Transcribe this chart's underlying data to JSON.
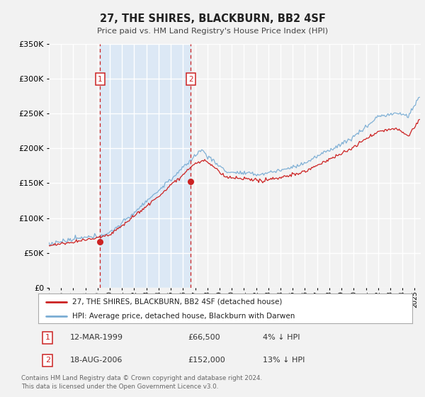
{
  "title": "27, THE SHIRES, BLACKBURN, BB2 4SF",
  "subtitle": "Price paid vs. HM Land Registry's House Price Index (HPI)",
  "ylim": [
    0,
    350000
  ],
  "yticks": [
    0,
    50000,
    100000,
    150000,
    200000,
    250000,
    300000,
    350000
  ],
  "bg_color": "#f2f2f2",
  "plot_bg_color": "#f2f2f2",
  "shade_color": "#dce8f5",
  "grid_color": "#ffffff",
  "hpi_color": "#7aadd4",
  "price_color": "#cc2222",
  "sale1_price": 66500,
  "sale1_price_label": "£66,500",
  "sale1_date_label": "12-MAR-1999",
  "sale1_hpi_pct": "4% ↓ HPI",
  "sale2_price": 152000,
  "sale2_price_label": "£152,000",
  "sale2_date_label": "18-AUG-2006",
  "sale2_hpi_pct": "13% ↓ HPI",
  "legend_label_price": "27, THE SHIRES, BLACKBURN, BB2 4SF (detached house)",
  "legend_label_hpi": "HPI: Average price, detached house, Blackburn with Darwen",
  "footer_line1": "Contains HM Land Registry data © Crown copyright and database right 2024.",
  "footer_line2": "This data is licensed under the Open Government Licence v3.0.",
  "sale1_x": 1999.21,
  "sale2_x": 2006.63,
  "vline1_x": 1999.21,
  "vline2_x": 2006.63,
  "shade_x1": 1999.21,
  "shade_x2": 2006.63,
  "xmin": 1995,
  "xmax": 2025.5
}
